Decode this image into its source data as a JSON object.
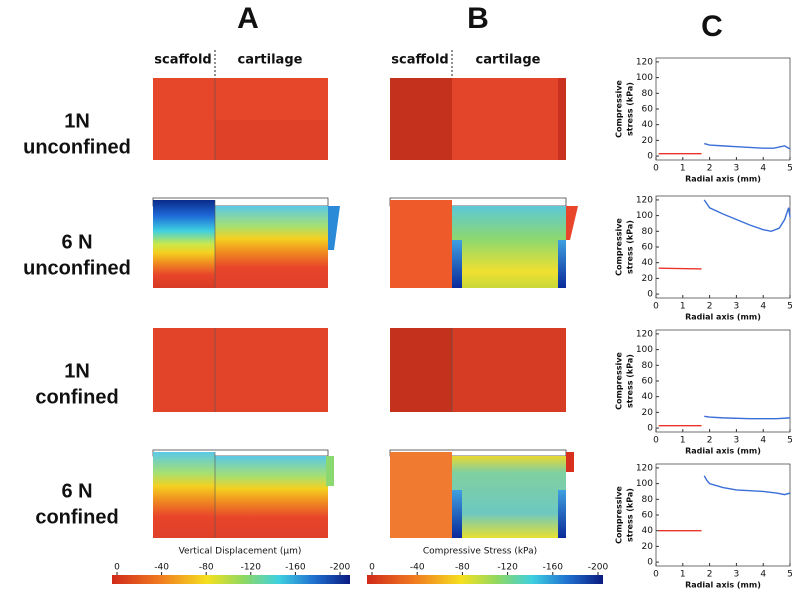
{
  "panels": [
    {
      "letter": "A",
      "left_header": "scaffold",
      "right_header": "cartilage",
      "colorbar": {
        "label": "Vertical Displacement (µm)",
        "lim": [
          0,
          -200
        ],
        "ticks": [
          0,
          -40,
          -80,
          -120,
          -160,
          -200
        ]
      }
    },
    {
      "letter": "B",
      "left_header": "scaffold",
      "right_header": "cartilage",
      "colorbar": {
        "label": "Compressive Stress (kPa)",
        "lim": [
          0,
          -200
        ],
        "ticks": [
          0,
          -40,
          -80,
          -120,
          -160,
          -200
        ]
      }
    }
  ],
  "panel_c_letter": "C",
  "conditions": [
    [
      "1N",
      "unconfined"
    ],
    [
      "6 N",
      "unconfined"
    ],
    [
      "1N",
      "confined"
    ],
    [
      "6 N",
      "confined"
    ]
  ],
  "chart_data": [
    {
      "type": "line",
      "ylabel": [
        "Compressive",
        "stress (kPa)"
      ],
      "xlabel": "Radial axis (mm)",
      "xlim": [
        0,
        5
      ],
      "xticks": [
        0,
        1,
        2,
        3,
        4,
        5
      ],
      "ylim": [
        -5,
        125
      ],
      "yticks": [
        0,
        20,
        40,
        60,
        80,
        100,
        120
      ],
      "series": [
        {
          "color": "#e8352a",
          "x": [
            0.1,
            1.7
          ],
          "values": [
            3,
            3
          ]
        },
        {
          "color": "#3a6fd8",
          "x": [
            1.8,
            2.0,
            2.5,
            3.0,
            3.5,
            4.0,
            4.4,
            4.8,
            5.0
          ],
          "values": [
            16,
            14,
            13,
            12,
            11,
            10,
            10,
            13,
            9
          ]
        }
      ]
    },
    {
      "type": "line",
      "ylabel": [
        "Compressive",
        "stress (kPa)"
      ],
      "xlabel": "Radial axis (mm)",
      "xlim": [
        0,
        5
      ],
      "xticks": [
        0,
        1,
        2,
        3,
        4,
        5
      ],
      "ylim": [
        -5,
        125
      ],
      "yticks": [
        0,
        20,
        40,
        60,
        80,
        100,
        120
      ],
      "series": [
        {
          "color": "#e8352a",
          "x": [
            0.1,
            1.7
          ],
          "values": [
            33,
            32
          ]
        },
        {
          "color": "#3a6fd8",
          "x": [
            1.8,
            1.9,
            2.0,
            2.5,
            3.0,
            3.5,
            4.0,
            4.3,
            4.6,
            4.8,
            4.95,
            5.0
          ],
          "values": [
            120,
            115,
            110,
            102,
            95,
            88,
            82,
            80,
            84,
            95,
            110,
            98
          ]
        }
      ]
    },
    {
      "type": "line",
      "ylabel": [
        "Compressive",
        "stress (kPa)"
      ],
      "xlabel": "Radial axis (mm)",
      "xlim": [
        0,
        5
      ],
      "xticks": [
        0,
        1,
        2,
        3,
        4,
        5
      ],
      "ylim": [
        -5,
        125
      ],
      "yticks": [
        0,
        20,
        40,
        60,
        80,
        100,
        120
      ],
      "series": [
        {
          "color": "#e8352a",
          "x": [
            0.1,
            1.7
          ],
          "values": [
            3,
            3
          ]
        },
        {
          "color": "#3a6fd8",
          "x": [
            1.8,
            2.0,
            2.5,
            3.5,
            4.5,
            5.0
          ],
          "values": [
            15,
            14,
            13,
            12,
            12,
            13
          ]
        }
      ]
    },
    {
      "type": "line",
      "ylabel": [
        "Compressive",
        "stress (kPa)"
      ],
      "xlabel": "Radial axis (mm)",
      "xlim": [
        0,
        5
      ],
      "xticks": [
        0,
        1,
        2,
        3,
        4,
        5
      ],
      "ylim": [
        -5,
        125
      ],
      "yticks": [
        0,
        20,
        40,
        60,
        80,
        100,
        120
      ],
      "series": [
        {
          "color": "#e8352a",
          "x": [
            0.1,
            1.7
          ],
          "values": [
            40,
            40
          ]
        },
        {
          "color": "#3a6fd8",
          "x": [
            1.8,
            1.9,
            2.0,
            2.5,
            3.0,
            3.5,
            4.0,
            4.5,
            4.8,
            5.0
          ],
          "values": [
            110,
            104,
            100,
            95,
            92,
            91,
            90,
            88,
            86,
            88
          ]
        }
      ]
    }
  ]
}
